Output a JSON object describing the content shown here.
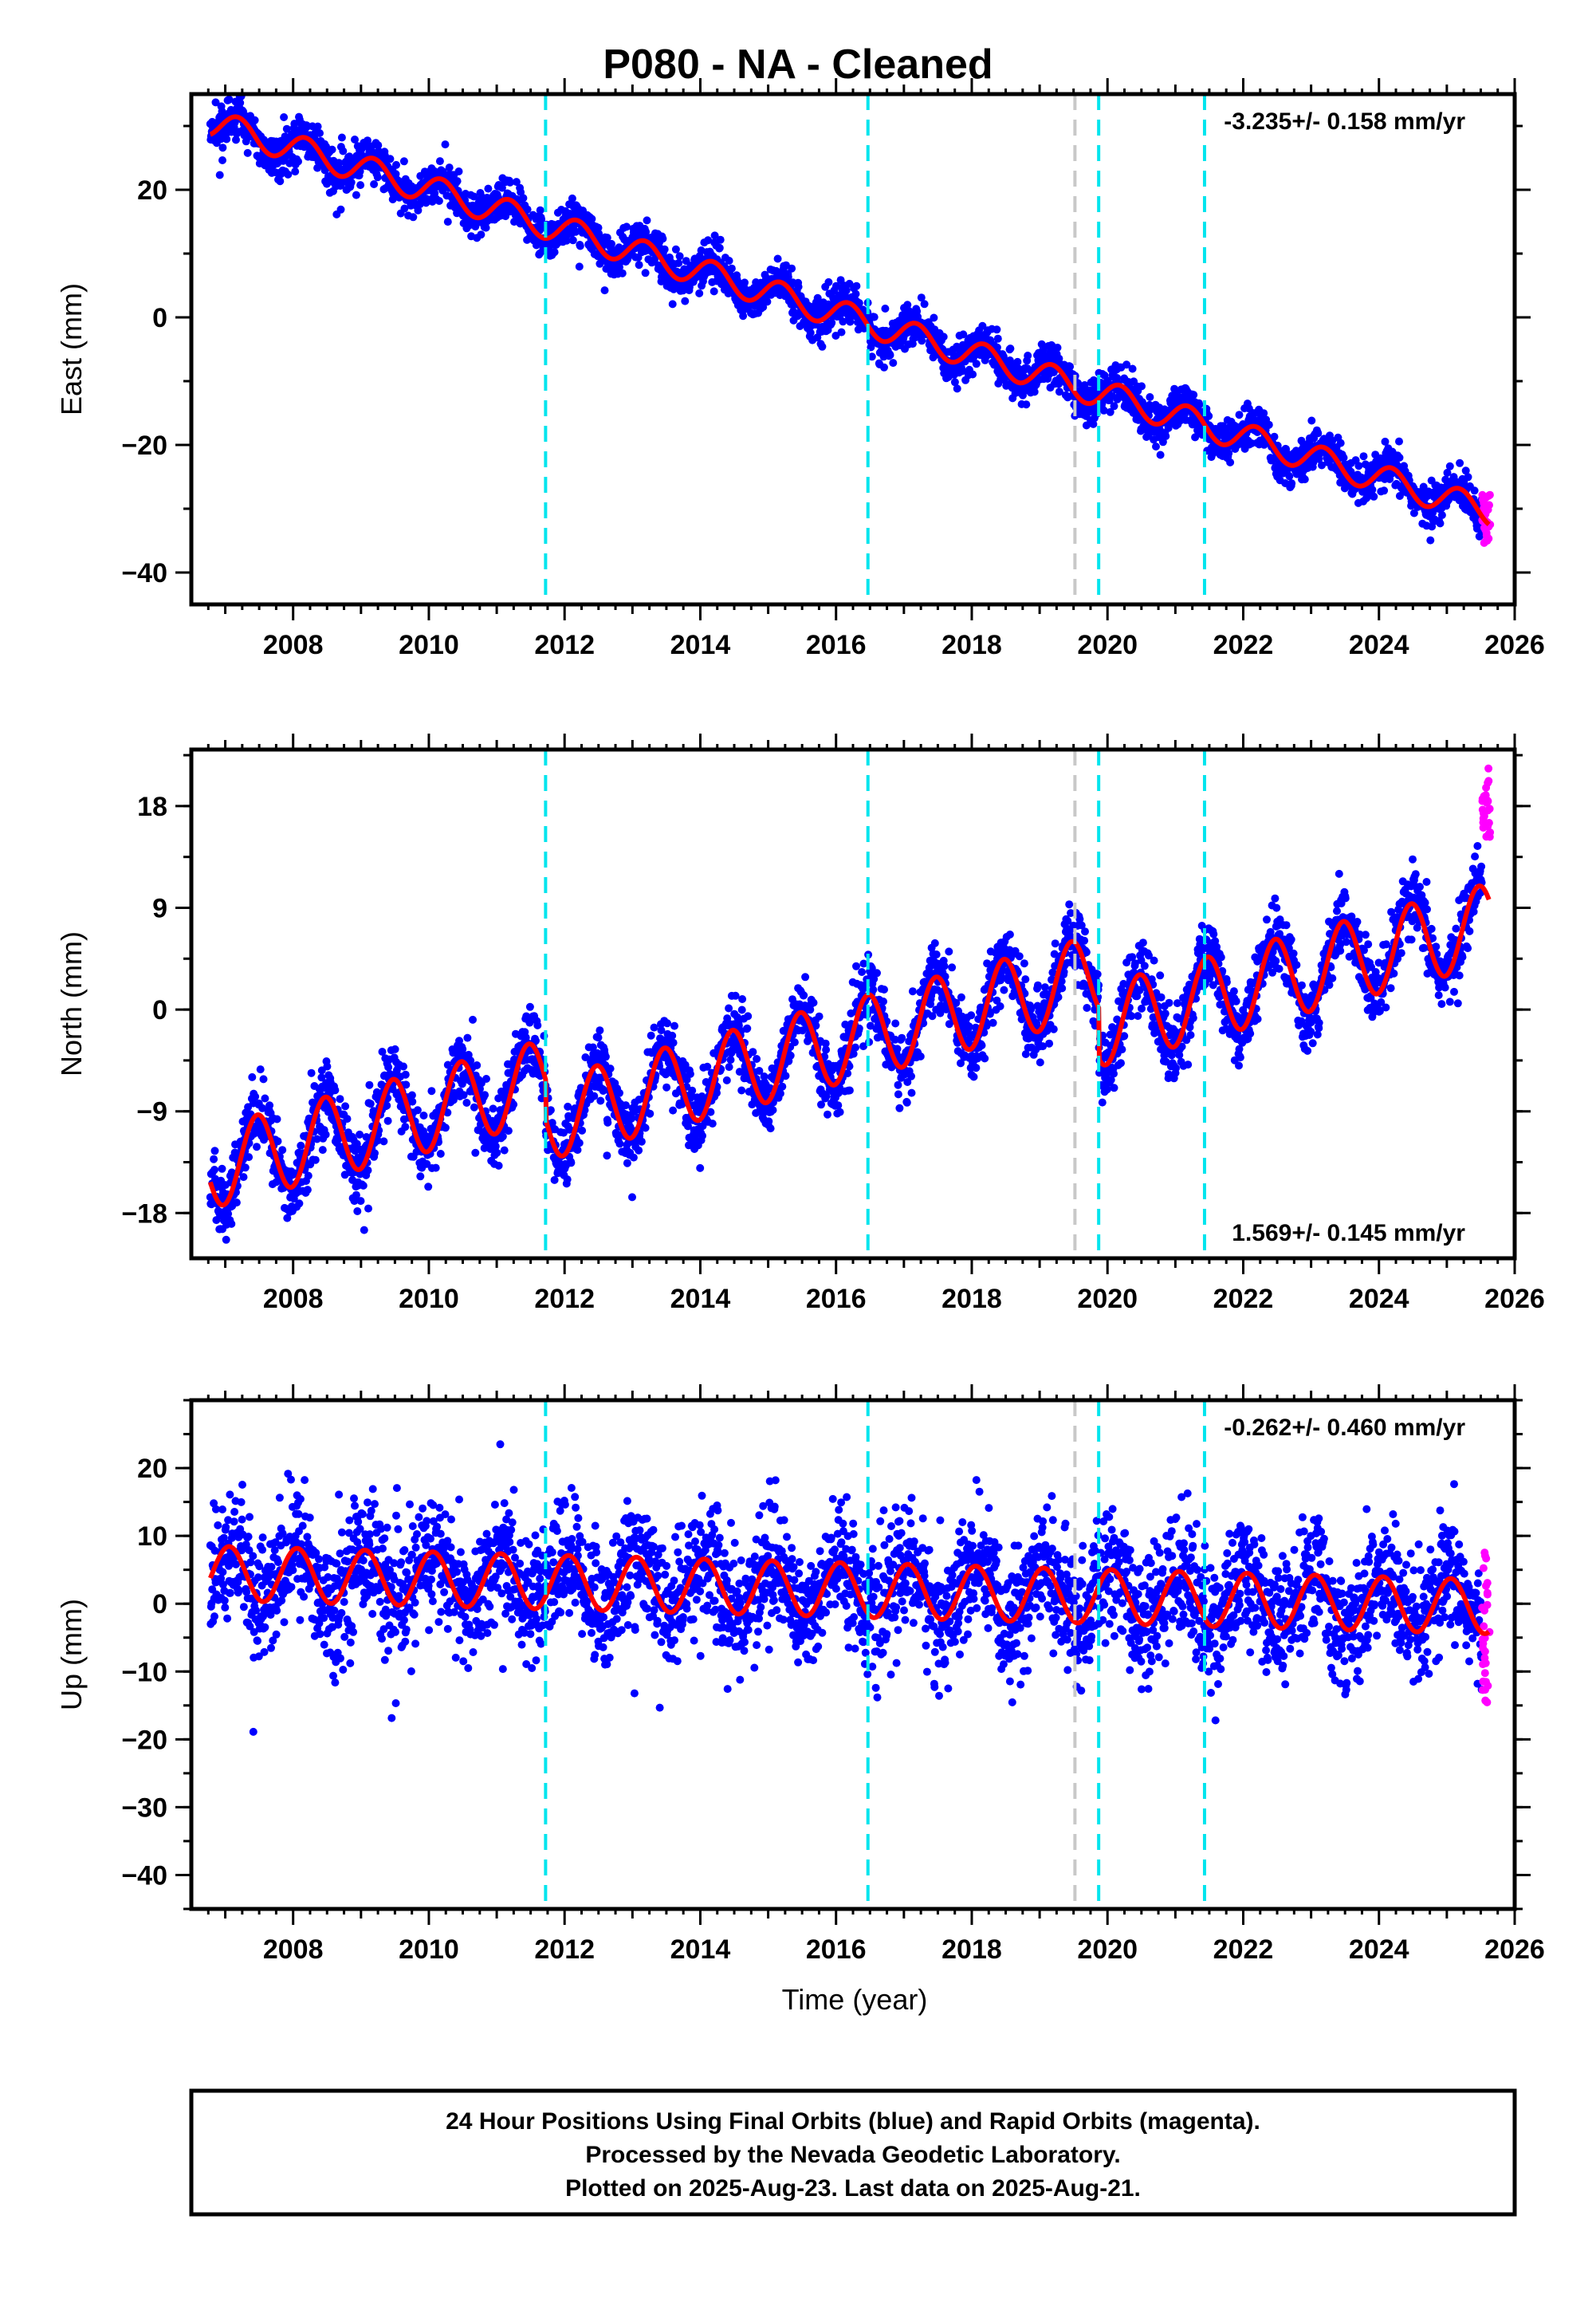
{
  "chart_data": {
    "type": "scatter",
    "title": "P080  - NA - Cleaned",
    "xlabel": "Time (year)",
    "xlim": [
      2006.5,
      2026.0
    ],
    "x_ticks": [
      2008,
      2010,
      2012,
      2014,
      2016,
      2018,
      2020,
      2022,
      2024,
      2026
    ],
    "x_tick_labels": [
      "2008",
      "2010",
      "2012",
      "2014",
      "2016",
      "2018",
      "2020",
      "2022",
      "2024",
      "2026"
    ],
    "grid": false,
    "event_lines": [
      {
        "year": 2011.72,
        "color": "#00e5ee",
        "style": "dashed"
      },
      {
        "year": 2016.47,
        "color": "#00e5ee",
        "style": "dashed"
      },
      {
        "year": 2019.52,
        "color": "#c8c8c8",
        "style": "dashed"
      },
      {
        "year": 2019.87,
        "color": "#00e5ee",
        "style": "dashed"
      },
      {
        "year": 2021.43,
        "color": "#00e5ee",
        "style": "dashed"
      }
    ],
    "series_colors": {
      "final": "#0000ff",
      "rapid": "#ff00ff",
      "model": "#ff0000"
    },
    "panels": [
      {
        "ylabel": "East (mm)",
        "ylim": [
          -45,
          35
        ],
        "y_ticks": [
          -40,
          -20,
          0,
          20
        ],
        "y_tick_labels": [
          "−40",
          "−20",
          "0",
          "20"
        ],
        "rate_label": "-3.235+/- 0.158 mm/yr",
        "rate_position": "top-right",
        "start": 30.5,
        "rate": -3.235,
        "annual_amp": 2.2,
        "phase": 0.4,
        "offsets": [],
        "noise": 1.6,
        "rapid": {
          "x0": 2025.52,
          "x1": 2025.64,
          "ymin": -35.5,
          "ymax": -27.5
        }
      },
      {
        "ylabel": "North (mm)",
        "ylim": [
          -22,
          23
        ],
        "y_ticks": [
          -18,
          -9,
          0,
          9,
          18
        ],
        "y_tick_labels": [
          "−18",
          "−9",
          "0",
          "9",
          "18"
        ],
        "rate_label": "1.569+/- 0.145 mm/yr",
        "rate_position": "bottom-right",
        "start": -14,
        "rate": 1.569,
        "annual_amp": 3.6,
        "phase": -1.4,
        "offsets": [
          {
            "year": 2011.72,
            "size": -3.5
          },
          {
            "year": 2019.87,
            "size": -4.5
          }
        ],
        "noise": 1.5,
        "rapid": {
          "x0": 2025.52,
          "x1": 2025.64,
          "ymin": 15,
          "ymax": 22
        }
      },
      {
        "ylabel": "Up (mm)",
        "ylim": [
          -45,
          30
        ],
        "y_ticks": [
          -40,
          -30,
          -20,
          -10,
          0,
          10,
          20
        ],
        "y_tick_labels": [
          "−40",
          "−30",
          "−20",
          "−10",
          "0",
          "10",
          "20"
        ],
        "rate_label": "-0.262+/- 0.460 mm/yr",
        "rate_position": "top-right",
        "start": 4.5,
        "rate": -0.262,
        "annual_amp": 4.0,
        "phase": 1.2,
        "offsets": [],
        "noise": 4.5,
        "rapid": {
          "x0": 2025.52,
          "x1": 2025.64,
          "ymin": -15,
          "ymax": 9
        }
      }
    ]
  },
  "caption": {
    "line1": "24 Hour Positions Using Final Orbits (blue) and Rapid Orbits (magenta).",
    "line2": "Processed by the Nevada Geodetic Laboratory.",
    "line3": "Plotted on 2025-Aug-23. Last data on 2025-Aug-21."
  }
}
